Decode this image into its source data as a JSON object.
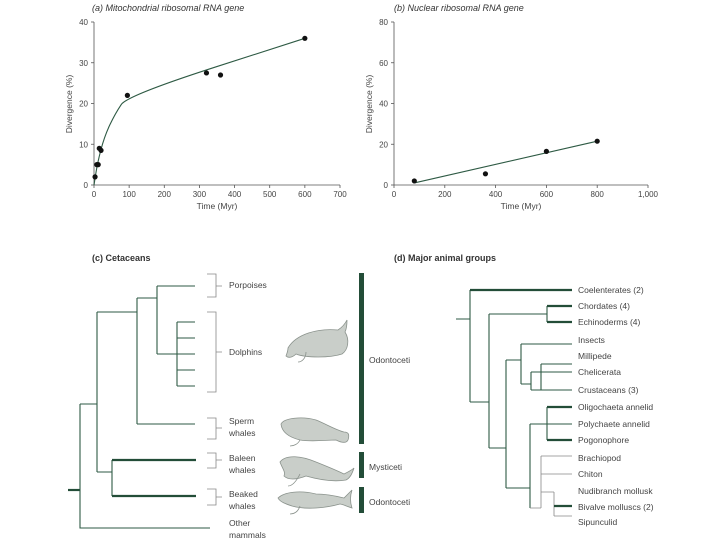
{
  "chart_data": [
    {
      "type": "scatter",
      "title": "(a) Mitochondrial ribosomal RNA gene",
      "xlabel": "Time (Myr)",
      "ylabel": "Divergence (%)",
      "xlim": [
        0,
        700
      ],
      "ylim": [
        0,
        40
      ],
      "xticks": [
        "0",
        "100",
        "200",
        "300",
        "400",
        "500",
        "600",
        "700"
      ],
      "yticks": [
        "0",
        "10",
        "20",
        "30",
        "40"
      ],
      "points": [
        {
          "x": 3,
          "y": 2
        },
        {
          "x": 8,
          "y": 5
        },
        {
          "x": 12,
          "y": 5
        },
        {
          "x": 15,
          "y": 9
        },
        {
          "x": 20,
          "y": 8.5
        },
        {
          "x": 95,
          "y": 22
        },
        {
          "x": 320,
          "y": 27.5
        },
        {
          "x": 360,
          "y": 27
        },
        {
          "x": 600,
          "y": 36
        }
      ],
      "fit_line": [
        {
          "x": 0,
          "y": 0
        },
        {
          "x": 10,
          "y": 5.5
        },
        {
          "x": 30,
          "y": 12
        },
        {
          "x": 60,
          "y": 17.5
        },
        {
          "x": 95,
          "y": 22
        },
        {
          "x": 600,
          "y": 36
        }
      ],
      "color": "#234d38"
    },
    {
      "type": "scatter",
      "title": "(b) Nuclear ribosomal RNA gene",
      "xlabel": "Time (Myr)",
      "ylabel": "Divergence (%)",
      "xlim": [
        0,
        1000
      ],
      "ylim": [
        0,
        80
      ],
      "xticks": [
        "0",
        "200",
        "400",
        "600",
        "800",
        "1,000"
      ],
      "yticks": [
        "0",
        "20",
        "40",
        "60",
        "80"
      ],
      "points": [
        {
          "x": 80,
          "y": 2
        },
        {
          "x": 360,
          "y": 5.5
        },
        {
          "x": 600,
          "y": 16.5
        },
        {
          "x": 800,
          "y": 21.5
        }
      ],
      "fit_line": [
        {
          "x": 80,
          "y": 1
        },
        {
          "x": 800,
          "y": 21.5
        }
      ],
      "color": "#234d38"
    }
  ],
  "trees": {
    "cetaceans": {
      "title": "(c) Cetaceans",
      "labels": [
        "Porpoises",
        "Dolphins",
        "Sperm",
        "whales",
        "Baleen",
        "whales",
        "Beaked",
        "whales",
        "Other",
        "mammals"
      ],
      "groups": [
        "Odontoceti",
        "Mysticeti",
        "Odontoceti"
      ]
    },
    "animals": {
      "title": "(d) Major animal groups",
      "labels": [
        "Coelenterates (2)",
        "Chordates (4)",
        "Echinoderms (4)",
        "Insects",
        "Millipede",
        "Chelicerata",
        "Crustaceans (3)",
        "Oligochaeta annelid",
        "Polychaete annelid",
        "Pogonophore",
        "Brachiopod",
        "Chiton",
        "Nudibranch mollusk",
        "Bivalve molluscs (2)",
        "Sipunculid"
      ]
    }
  }
}
